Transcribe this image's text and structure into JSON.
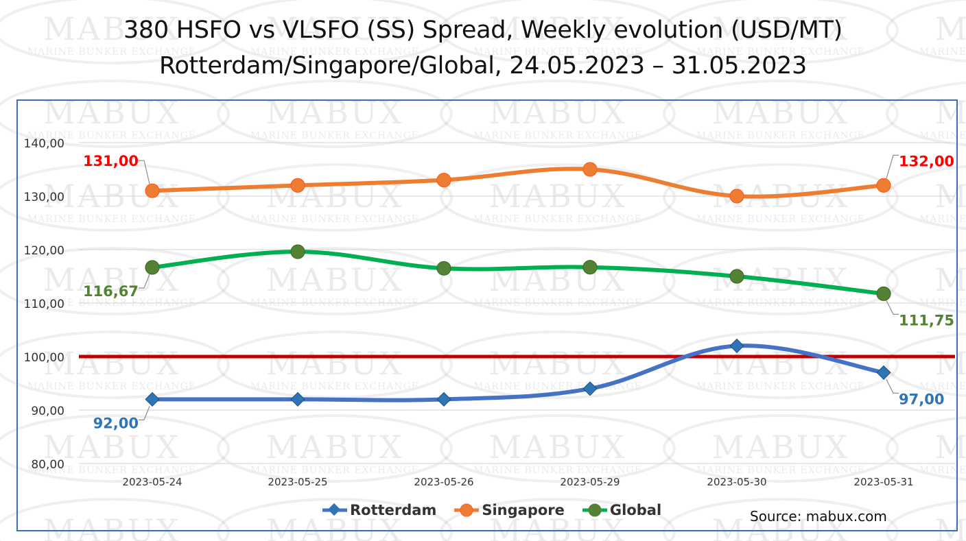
{
  "chart_data": {
    "type": "line",
    "title": "380 HSFO vs VLSFO (SS) Spread, Weekly evolution (USD/MT)",
    "subtitle": "Rotterdam/Singapore/Global, 24.05.2023 – 31.05.2023",
    "xlabel": "",
    "ylabel": "",
    "categories": [
      "2023-05-24",
      "2023-05-25",
      "2023-05-26",
      "2023-05-29",
      "2023-05-30",
      "2023-05-31"
    ],
    "ylim": [
      80,
      140
    ],
    "yticks": [
      "80,00",
      "90,00",
      "100,00",
      "110,00",
      "120,00",
      "130,00",
      "140,00"
    ],
    "ytick_values": [
      80,
      90,
      100,
      110,
      120,
      130,
      140
    ],
    "grid": true,
    "reference_line": {
      "value": 100,
      "color": "#c00000"
    },
    "series": [
      {
        "name": "Rotterdam",
        "values": [
          92,
          92,
          92,
          94,
          102,
          97
        ],
        "color": "#4472c4",
        "marker": "diamond",
        "marker_color": "#2e75b6",
        "label_color": "#2e75b6",
        "labels": [
          {
            "index": 0,
            "text": "92,00",
            "position": "below-left"
          },
          {
            "index": 5,
            "text": "97,00",
            "position": "below-right"
          }
        ]
      },
      {
        "name": "Singapore",
        "values": [
          131,
          132,
          133,
          135,
          130,
          132
        ],
        "color": "#ed7d31",
        "marker": "circle",
        "marker_color": "#ed7d31",
        "label_color": "#ff0000",
        "labels": [
          {
            "index": 0,
            "text": "131,00",
            "position": "above-left"
          },
          {
            "index": 5,
            "text": "132,00",
            "position": "above-right"
          }
        ]
      },
      {
        "name": "Global",
        "values": [
          116.67,
          119.6,
          116.5,
          116.7,
          115,
          111.75
        ],
        "color": "#00b050",
        "marker": "circle",
        "marker_color": "#548235",
        "label_color": "#548235",
        "labels": [
          {
            "index": 0,
            "text": "116,67",
            "position": "below-left"
          },
          {
            "index": 5,
            "text": "111,75",
            "position": "below-right"
          }
        ]
      }
    ],
    "legend": {
      "placement": "bottom"
    }
  },
  "source": "Source: mabux.com",
  "watermark": {
    "brand": "MABUX",
    "subtitle": "Marine Bunker Exchange"
  }
}
